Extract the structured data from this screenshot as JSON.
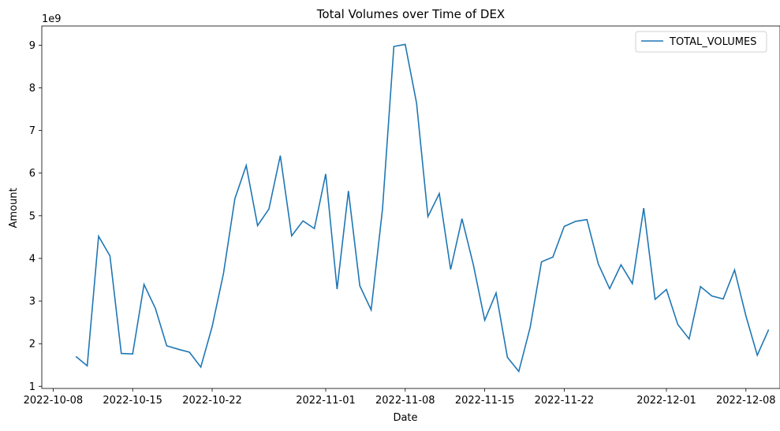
{
  "chart_data": {
    "type": "line",
    "title": "Total Volumes over Time of DEX",
    "xlabel": "Date",
    "ylabel": "Amount",
    "y_offset_label": "1e9",
    "x_tick_labels": [
      "2022-10-08",
      "2022-10-15",
      "2022-10-22",
      "2022-11-01",
      "2022-11-08",
      "2022-11-15",
      "2022-11-22",
      "2022-12-01",
      "2022-12-08"
    ],
    "y_tick_labels": [
      "1",
      "2",
      "3",
      "4",
      "5",
      "6",
      "7",
      "8",
      "9"
    ],
    "xlim": [
      "2022-10-07",
      "2022-12-11"
    ],
    "ylim": [
      0.95,
      9.45
    ],
    "grid": false,
    "legend_position": "upper right",
    "series": [
      {
        "name": "TOTAL_VOLUMES",
        "color": "#1f77b4",
        "start_date": "2022-10-10",
        "values": [
          1.7,
          1.48,
          4.52,
          4.06,
          1.77,
          1.76,
          3.39,
          2.83,
          1.95,
          1.87,
          1.8,
          1.45,
          2.4,
          3.65,
          5.4,
          6.18,
          4.77,
          5.16,
          6.41,
          4.53,
          4.88,
          4.7,
          5.98,
          3.28,
          5.58,
          3.36,
          2.79,
          5.16,
          8.97,
          9.02,
          7.64,
          4.98,
          5.52,
          3.74,
          4.93,
          3.85,
          2.55,
          3.19,
          1.68,
          1.35,
          2.38,
          3.92,
          4.03,
          4.75,
          4.87,
          4.91,
          3.87,
          3.29,
          3.85,
          3.41,
          5.18,
          3.04,
          3.27,
          2.45,
          2.11,
          3.34,
          3.12,
          3.05,
          3.73,
          2.65,
          1.73,
          2.33
        ]
      }
    ]
  }
}
